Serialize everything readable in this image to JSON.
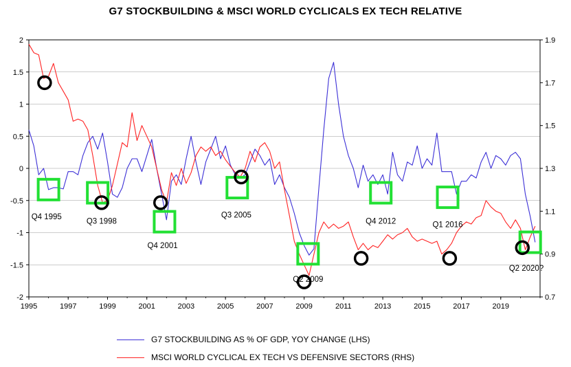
{
  "chart_data": {
    "type": "line",
    "title": "G7 STOCKBUILDING & MSCI WORLD CYCLICALS EX TECH RELATIVE",
    "x_ticks": [
      "1995",
      "1997",
      "1999",
      "2001",
      "2003",
      "2005",
      "2007",
      "2009",
      "2011",
      "2013",
      "2015",
      "2017",
      "2019"
    ],
    "xlim": [
      1995,
      2021
    ],
    "y_left": {
      "ylim": [
        -2,
        2
      ],
      "ticks": [
        "2",
        "1.5",
        "1",
        "0.5",
        "0",
        "-0.5",
        "-1",
        "-1.5",
        "-2"
      ]
    },
    "y_right": {
      "ylim": [
        0.7,
        1.9
      ],
      "ticks": [
        "1.9",
        "1.7",
        "1.5",
        "1.3",
        "1.1",
        "0.9",
        "0.7"
      ]
    },
    "grid": true,
    "series": [
      {
        "name": "G7 STOCKBUILDING AS % OF GDP, YOY CHANGE (LHS)",
        "axis": "left",
        "color": "#3b2fd6",
        "points": [
          [
            1995.0,
            0.6
          ],
          [
            1995.25,
            0.35
          ],
          [
            1995.5,
            -0.1
          ],
          [
            1995.75,
            0.0
          ],
          [
            1996.0,
            -0.33
          ],
          [
            1996.25,
            -0.3
          ],
          [
            1996.5,
            -0.3
          ],
          [
            1996.75,
            -0.32
          ],
          [
            1997.0,
            -0.05
          ],
          [
            1997.25,
            -0.05
          ],
          [
            1997.5,
            -0.1
          ],
          [
            1997.75,
            0.2
          ],
          [
            1998.0,
            0.4
          ],
          [
            1998.25,
            0.5
          ],
          [
            1998.5,
            0.3
          ],
          [
            1998.75,
            0.55
          ],
          [
            1999.0,
            0.1
          ],
          [
            1999.25,
            -0.4
          ],
          [
            1999.5,
            -0.45
          ],
          [
            1999.75,
            -0.3
          ],
          [
            2000.0,
            0.0
          ],
          [
            2000.25,
            0.15
          ],
          [
            2000.5,
            0.15
          ],
          [
            2000.75,
            -0.05
          ],
          [
            2001.0,
            0.2
          ],
          [
            2001.25,
            0.45
          ],
          [
            2001.5,
            0.0
          ],
          [
            2001.75,
            -0.4
          ],
          [
            2002.0,
            -0.8
          ],
          [
            2002.25,
            -0.2
          ],
          [
            2002.5,
            -0.1
          ],
          [
            2002.75,
            -0.25
          ],
          [
            2003.0,
            0.15
          ],
          [
            2003.25,
            0.5
          ],
          [
            2003.5,
            0.1
          ],
          [
            2003.75,
            -0.25
          ],
          [
            2004.0,
            0.1
          ],
          [
            2004.25,
            0.3
          ],
          [
            2004.5,
            0.5
          ],
          [
            2004.75,
            0.15
          ],
          [
            2005.0,
            0.35
          ],
          [
            2005.25,
            0.05
          ],
          [
            2005.5,
            -0.1
          ],
          [
            2005.75,
            -0.15
          ],
          [
            2006.0,
            -0.1
          ],
          [
            2006.25,
            0.1
          ],
          [
            2006.5,
            0.3
          ],
          [
            2006.75,
            0.2
          ],
          [
            2007.0,
            0.05
          ],
          [
            2007.25,
            0.15
          ],
          [
            2007.5,
            -0.25
          ],
          [
            2007.75,
            -0.1
          ],
          [
            2008.0,
            -0.3
          ],
          [
            2008.25,
            -0.45
          ],
          [
            2008.5,
            -0.7
          ],
          [
            2008.75,
            -1.0
          ],
          [
            2009.0,
            -1.2
          ],
          [
            2009.25,
            -1.35
          ],
          [
            2009.5,
            -1.25
          ],
          [
            2009.75,
            -0.3
          ],
          [
            2010.0,
            0.6
          ],
          [
            2010.25,
            1.4
          ],
          [
            2010.5,
            1.65
          ],
          [
            2010.75,
            1.0
          ],
          [
            2011.0,
            0.5
          ],
          [
            2011.25,
            0.2
          ],
          [
            2011.5,
            0.0
          ],
          [
            2011.75,
            -0.3
          ],
          [
            2012.0,
            0.05
          ],
          [
            2012.25,
            -0.2
          ],
          [
            2012.5,
            -0.1
          ],
          [
            2012.75,
            -0.25
          ],
          [
            2013.0,
            -0.1
          ],
          [
            2013.25,
            -0.4
          ],
          [
            2013.5,
            0.25
          ],
          [
            2013.75,
            -0.1
          ],
          [
            2014.0,
            -0.2
          ],
          [
            2014.25,
            0.1
          ],
          [
            2014.5,
            0.05
          ],
          [
            2014.75,
            0.35
          ],
          [
            2015.0,
            0.0
          ],
          [
            2015.25,
            0.15
          ],
          [
            2015.5,
            0.05
          ],
          [
            2015.75,
            0.55
          ],
          [
            2016.0,
            -0.05
          ],
          [
            2016.25,
            -0.05
          ],
          [
            2016.5,
            -0.05
          ],
          [
            2016.75,
            -0.4
          ],
          [
            2017.0,
            -0.2
          ],
          [
            2017.25,
            -0.2
          ],
          [
            2017.5,
            -0.1
          ],
          [
            2017.75,
            -0.15
          ],
          [
            2018.0,
            0.1
          ],
          [
            2018.25,
            0.25
          ],
          [
            2018.5,
            0.0
          ],
          [
            2018.75,
            0.2
          ],
          [
            2019.0,
            0.15
          ],
          [
            2019.25,
            0.05
          ],
          [
            2019.5,
            0.2
          ],
          [
            2019.75,
            0.25
          ],
          [
            2020.0,
            0.15
          ],
          [
            2020.25,
            -0.4
          ],
          [
            2020.5,
            -0.75
          ],
          [
            2020.75,
            -1.15
          ]
        ]
      },
      {
        "name": "MSCI WORLD CYCLICAL EX TECH VS DEFENSIVE SECTORS (RHS)",
        "axis": "right",
        "color": "#ff2222",
        "points": [
          [
            1995.0,
            1.88
          ],
          [
            1995.25,
            1.84
          ],
          [
            1995.5,
            1.83
          ],
          [
            1995.75,
            1.72
          ],
          [
            1996.0,
            1.73
          ],
          [
            1996.25,
            1.79
          ],
          [
            1996.5,
            1.7
          ],
          [
            1996.75,
            1.66
          ],
          [
            1997.0,
            1.62
          ],
          [
            1997.25,
            1.52
          ],
          [
            1997.5,
            1.53
          ],
          [
            1997.75,
            1.52
          ],
          [
            1998.0,
            1.48
          ],
          [
            1998.25,
            1.36
          ],
          [
            1998.5,
            1.22
          ],
          [
            1998.75,
            1.14
          ],
          [
            1999.0,
            1.15
          ],
          [
            1999.25,
            1.22
          ],
          [
            1999.5,
            1.32
          ],
          [
            1999.75,
            1.42
          ],
          [
            2000.0,
            1.4
          ],
          [
            2000.25,
            1.56
          ],
          [
            2000.5,
            1.43
          ],
          [
            2000.75,
            1.5
          ],
          [
            2001.0,
            1.45
          ],
          [
            2001.25,
            1.4
          ],
          [
            2001.5,
            1.3
          ],
          [
            2001.75,
            1.2
          ],
          [
            2002.0,
            1.14
          ],
          [
            2002.25,
            1.28
          ],
          [
            2002.5,
            1.22
          ],
          [
            2002.75,
            1.3
          ],
          [
            2003.0,
            1.23
          ],
          [
            2003.25,
            1.28
          ],
          [
            2003.5,
            1.36
          ],
          [
            2003.75,
            1.4
          ],
          [
            2004.0,
            1.38
          ],
          [
            2004.25,
            1.4
          ],
          [
            2004.5,
            1.36
          ],
          [
            2004.75,
            1.38
          ],
          [
            2005.0,
            1.34
          ],
          [
            2005.25,
            1.31
          ],
          [
            2005.5,
            1.28
          ],
          [
            2005.75,
            1.26
          ],
          [
            2006.0,
            1.3
          ],
          [
            2006.25,
            1.38
          ],
          [
            2006.5,
            1.33
          ],
          [
            2006.75,
            1.4
          ],
          [
            2007.0,
            1.42
          ],
          [
            2007.25,
            1.38
          ],
          [
            2007.5,
            1.3
          ],
          [
            2007.75,
            1.33
          ],
          [
            2008.0,
            1.2
          ],
          [
            2008.25,
            1.08
          ],
          [
            2008.5,
            0.96
          ],
          [
            2008.75,
            0.9
          ],
          [
            2009.0,
            0.85
          ],
          [
            2009.25,
            0.8
          ],
          [
            2009.5,
            0.9
          ],
          [
            2009.75,
            1.0
          ],
          [
            2010.0,
            1.05
          ],
          [
            2010.25,
            1.02
          ],
          [
            2010.5,
            1.04
          ],
          [
            2010.75,
            1.02
          ],
          [
            2011.0,
            1.03
          ],
          [
            2011.25,
            1.05
          ],
          [
            2011.5,
            0.98
          ],
          [
            2011.75,
            0.92
          ],
          [
            2012.0,
            0.95
          ],
          [
            2012.25,
            0.92
          ],
          [
            2012.5,
            0.94
          ],
          [
            2012.75,
            0.93
          ],
          [
            2013.0,
            0.96
          ],
          [
            2013.25,
            0.99
          ],
          [
            2013.5,
            0.97
          ],
          [
            2013.75,
            0.99
          ],
          [
            2014.0,
            1.0
          ],
          [
            2014.25,
            1.02
          ],
          [
            2014.5,
            0.98
          ],
          [
            2014.75,
            0.96
          ],
          [
            2015.0,
            0.97
          ],
          [
            2015.25,
            0.96
          ],
          [
            2015.5,
            0.95
          ],
          [
            2015.75,
            0.96
          ],
          [
            2016.0,
            0.9
          ],
          [
            2016.25,
            0.92
          ],
          [
            2016.5,
            0.95
          ],
          [
            2016.75,
            1.0
          ],
          [
            2017.0,
            1.03
          ],
          [
            2017.25,
            1.05
          ],
          [
            2017.5,
            1.04
          ],
          [
            2017.75,
            1.07
          ],
          [
            2018.0,
            1.08
          ],
          [
            2018.25,
            1.15
          ],
          [
            2018.5,
            1.12
          ],
          [
            2018.75,
            1.1
          ],
          [
            2019.0,
            1.09
          ],
          [
            2019.25,
            1.05
          ],
          [
            2019.5,
            1.02
          ],
          [
            2019.75,
            1.06
          ],
          [
            2020.0,
            1.02
          ],
          [
            2020.25,
            0.92
          ],
          [
            2020.5,
            0.98
          ],
          [
            2020.75,
            1.03
          ]
        ]
      }
    ],
    "annotations": {
      "squares_color": "#22e034",
      "circles_color": "#000000",
      "labels": [
        {
          "text": "Q4 1995",
          "x": 1995.9,
          "y": -0.75
        },
        {
          "text": "Q3 1998",
          "x": 1998.7,
          "y": -0.82
        },
        {
          "text": "Q4 2001",
          "x": 2001.8,
          "y": -1.2
        },
        {
          "text": "Q3 2005",
          "x": 2005.55,
          "y": -0.72
        },
        {
          "text": "Q2 2009",
          "x": 2009.2,
          "y": -1.72
        },
        {
          "text": "Q4 2012",
          "x": 2012.9,
          "y": -0.82
        },
        {
          "text": "Q1 2016",
          "x": 2016.3,
          "y": -0.87
        },
        {
          "text": "Q2 2020?",
          "x": 2020.3,
          "y": -1.55
        }
      ],
      "squares": [
        {
          "x": 1996.0,
          "y": -0.33
        },
        {
          "x": 1998.5,
          "y": -0.38
        },
        {
          "x": 2001.9,
          "y": -0.83
        },
        {
          "x": 2005.6,
          "y": -0.3
        },
        {
          "x": 2009.2,
          "y": -1.33
        },
        {
          "x": 2012.9,
          "y": -0.38
        },
        {
          "x": 2016.3,
          "y": -0.45
        },
        {
          "x": 2020.5,
          "y": -1.15
        }
      ],
      "circles": [
        {
          "x": 1995.8,
          "y": 1.7
        },
        {
          "x": 1998.7,
          "y": 1.14
        },
        {
          "x": 2001.7,
          "y": 1.14
        },
        {
          "x": 2005.8,
          "y": 1.26
        },
        {
          "x": 2009.0,
          "y": 0.77
        },
        {
          "x": 2011.9,
          "y": 0.88
        },
        {
          "x": 2016.4,
          "y": 0.88
        },
        {
          "x": 2020.1,
          "y": 0.93
        }
      ]
    }
  }
}
